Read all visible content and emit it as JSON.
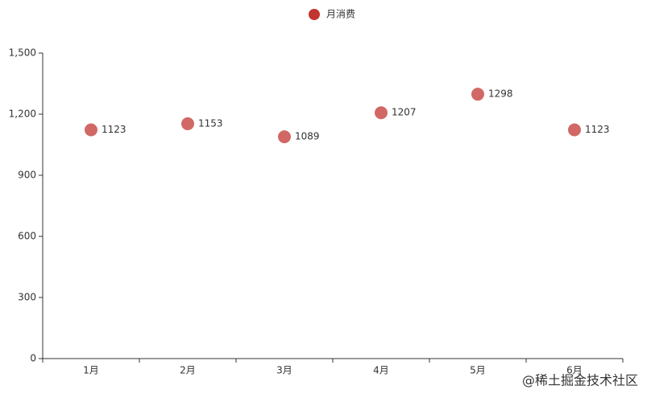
{
  "chart_data": {
    "type": "scatter",
    "categories": [
      "1月",
      "2月",
      "3月",
      "4月",
      "5月",
      "6月"
    ],
    "series": [
      {
        "name": "月消费",
        "color": "#c23531",
        "values": [
          1123,
          1153,
          1089,
          1207,
          1298,
          1123
        ]
      }
    ],
    "ylim": [
      0,
      1500
    ],
    "yticks": [
      0,
      300,
      600,
      900,
      {
        "value": 1200,
        "label": "1,200"
      },
      {
        "value": 1500,
        "label": "1,500"
      }
    ],
    "legend": "top",
    "watermark": "@稀土掘金技术社区"
  }
}
